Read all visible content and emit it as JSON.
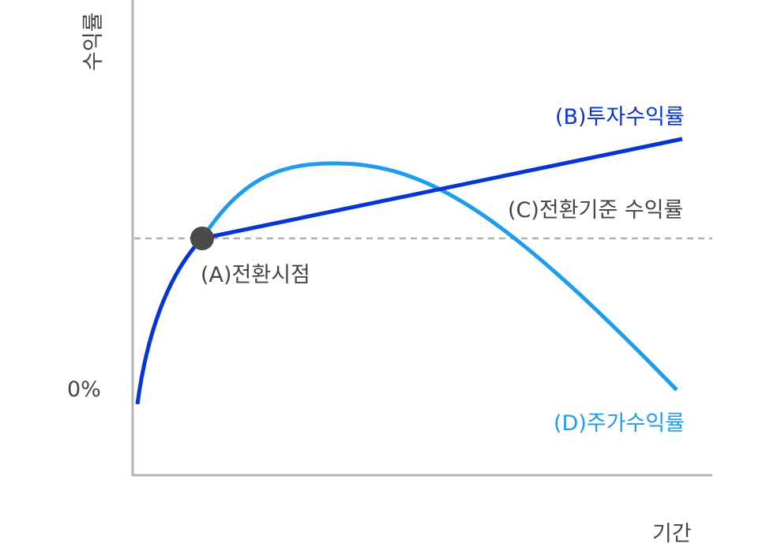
{
  "axes": {
    "y_label": "수익률",
    "x_label": "기간",
    "zero_label": "0%"
  },
  "labels": {
    "a": "(A)전환시점",
    "b": "(B)투자수익률",
    "c": "(C)전환기준 수익률",
    "d": "(D)주가수익률"
  },
  "colors": {
    "investment_return": "#0535d9",
    "stock_return": "#1e9cf0",
    "threshold": "#b0b0b0",
    "point": "#4a4a4a",
    "axis": "#b4b4b4",
    "text": "#444444"
  }
}
